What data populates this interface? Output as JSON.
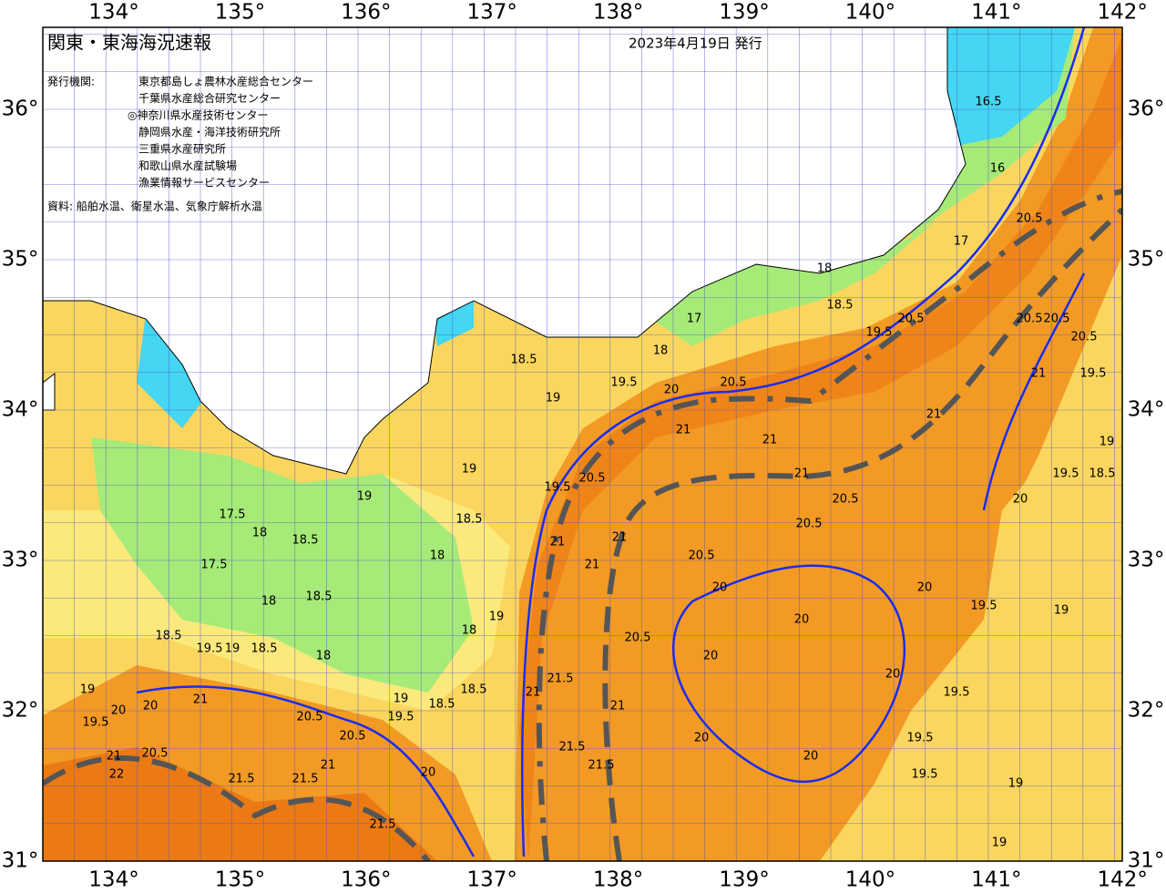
{
  "header": {
    "title": "関東・東海海況速報",
    "issued": "2023年4月19日 発行"
  },
  "issuers": {
    "label": "発行機関:",
    "names": [
      "東京都島しょ農林水産総合センター",
      "千葉県水産総合研究センター",
      "◎神奈川県水産技術センター",
      "静岡県水産・海洋技術研究所",
      "三重県水産研究所",
      "和歌山県水産試験場",
      "漁業情報サービスセンター"
    ]
  },
  "sources": "資料: 船舶水温、衛星水温、気象庁解析水温",
  "axes": {
    "lon_ticks": [
      {
        "value": 134,
        "label": "134°"
      },
      {
        "value": 135,
        "label": "135°"
      },
      {
        "value": 136,
        "label": "136°"
      },
      {
        "value": 137,
        "label": "137°"
      },
      {
        "value": 138,
        "label": "138°"
      },
      {
        "value": 139,
        "label": "139°"
      },
      {
        "value": 140,
        "label": "140°"
      },
      {
        "value": 141,
        "label": "141°"
      },
      {
        "value": 142,
        "label": "142°"
      }
    ],
    "lat_ticks": [
      {
        "value": 31,
        "label": "31°"
      },
      {
        "value": 32,
        "label": "32°"
      },
      {
        "value": 33,
        "label": "33°"
      },
      {
        "value": 34,
        "label": "34°"
      },
      {
        "value": 35,
        "label": "35°"
      },
      {
        "value": 36,
        "label": "36°"
      }
    ]
  },
  "isotherm_labels": [
    16.5,
    16,
    17,
    17,
    18,
    18.5,
    19.5,
    20.5,
    18.5,
    19,
    19.5,
    20,
    20.5,
    21,
    21,
    21,
    20.5,
    20.5,
    20.5,
    20.5,
    19.5,
    21,
    21,
    21,
    20,
    20,
    20,
    19.5,
    19,
    20,
    20,
    20,
    19.5,
    19.5,
    19.5,
    19,
    19,
    21,
    20.5,
    20.5,
    20.5,
    20.5,
    21,
    19.5,
    19,
    18.5,
    20,
    19.5,
    18,
    18.5,
    19,
    19,
    18.5,
    18,
    17.5,
    17.5,
    18,
    18.5,
    18,
    18,
    19,
    18.5,
    19.5,
    19,
    18.5,
    18,
    19,
    20,
    20,
    21,
    19.5,
    20.5,
    20.5,
    19.5,
    19,
    18.5,
    18.5,
    21,
    22,
    20.5,
    21.5,
    21.5,
    21.5,
    21.5,
    21.5,
    21.5,
    21,
    20.5,
    21,
    20,
    20,
    21
  ]
}
